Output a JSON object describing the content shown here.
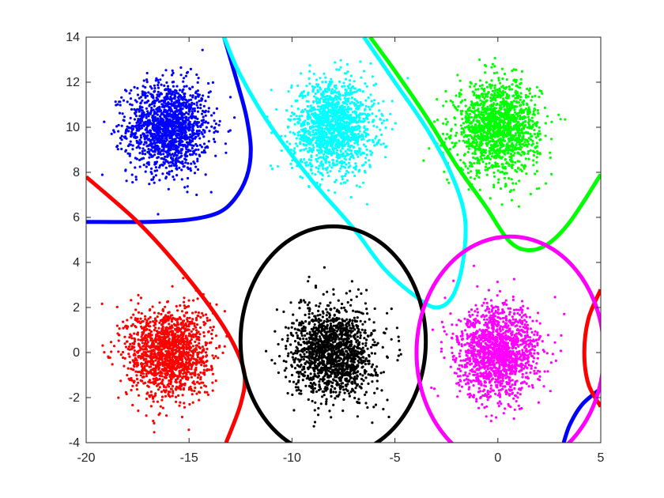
{
  "chart_data": {
    "type": "scatter",
    "title": "",
    "xlabel": "",
    "ylabel": "",
    "xlim": [
      -20,
      5
    ],
    "ylim": [
      -4,
      14
    ],
    "grid": false,
    "box": true,
    "x_ticks": [
      "-20",
      "-15",
      "-10",
      "-5",
      "0",
      "5"
    ],
    "y_ticks": [
      "-4",
      "-2",
      "0",
      "2",
      "4",
      "6",
      "8",
      "10",
      "12",
      "14"
    ],
    "clusters": [
      {
        "color": "#0000ff",
        "center": [
          -16,
          10
        ],
        "spread": [
          1.0,
          1.0
        ],
        "count": 1500
      },
      {
        "color": "#00ffff",
        "center": [
          -8,
          10
        ],
        "spread": [
          1.0,
          1.0
        ],
        "count": 1500
      },
      {
        "color": "#00ff00",
        "center": [
          0,
          10
        ],
        "spread": [
          1.0,
          1.0
        ],
        "count": 1500
      },
      {
        "color": "#ff0000",
        "center": [
          -16,
          0
        ],
        "spread": [
          1.0,
          1.0
        ],
        "count": 1500
      },
      {
        "color": "#000000",
        "center": [
          -8,
          0
        ],
        "spread": [
          1.0,
          1.0
        ],
        "count": 1500
      },
      {
        "color": "#ff00ff",
        "center": [
          0,
          0
        ],
        "spread": [
          1.0,
          1.0
        ],
        "count": 1500
      }
    ],
    "boundaries": [
      {
        "color": "#0000ff",
        "points": [
          [
            -20,
            5.8
          ],
          [
            -17,
            5.8
          ],
          [
            -15,
            5.9
          ],
          [
            -13.6,
            6.2
          ],
          [
            -12.8,
            6.8
          ],
          [
            -12.2,
            7.8
          ],
          [
            -12.0,
            9.0
          ],
          [
            -12.2,
            10.4
          ],
          [
            -12.6,
            11.8
          ],
          [
            -13.3,
            14.0
          ]
        ]
      },
      {
        "color": "#0000ff",
        "points": [
          [
            3.2,
            -4.0
          ],
          [
            3.5,
            -3.2
          ],
          [
            4.1,
            -2.3
          ],
          [
            5.0,
            -1.6
          ]
        ]
      },
      {
        "color": "#00ffff",
        "points": [
          [
            -13.3,
            14.0
          ],
          [
            -12.5,
            12.3
          ],
          [
            -11.0,
            10.0
          ],
          [
            -9.0,
            7.6
          ],
          [
            -7.0,
            5.5
          ],
          [
            -5.5,
            3.7
          ],
          [
            -4.0,
            2.5
          ],
          [
            -3.0,
            2.0
          ],
          [
            -2.2,
            2.5
          ],
          [
            -1.7,
            4.0
          ],
          [
            -1.6,
            6.0
          ],
          [
            -2.3,
            8.0
          ],
          [
            -3.5,
            10.0
          ],
          [
            -5.0,
            12.0
          ],
          [
            -6.5,
            14.0
          ]
        ]
      },
      {
        "color": "#00ff00",
        "points": [
          [
            -6.2,
            14.0
          ],
          [
            -5.0,
            12.5
          ],
          [
            -3.5,
            10.5
          ],
          [
            -2.0,
            8.3
          ],
          [
            -0.6,
            6.5
          ],
          [
            0.5,
            5.0
          ],
          [
            1.4,
            4.55
          ],
          [
            2.4,
            4.8
          ],
          [
            3.5,
            5.8
          ],
          [
            5.0,
            7.9
          ]
        ]
      },
      {
        "color": "#ff0000",
        "points": [
          [
            -20,
            7.8
          ],
          [
            -17.5,
            5.8
          ],
          [
            -15.5,
            3.8
          ],
          [
            -13.8,
            1.8
          ],
          [
            -12.8,
            0.3
          ],
          [
            -12.3,
            -1.0
          ],
          [
            -12.5,
            -2.3
          ],
          [
            -13.2,
            -4.0
          ]
        ]
      },
      {
        "color": "#ff0000",
        "points": [
          [
            5.0,
            2.8
          ],
          [
            4.4,
            1.5
          ],
          [
            4.2,
            0.0
          ],
          [
            4.4,
            -1.4
          ],
          [
            5.0,
            -2.4
          ]
        ]
      },
      {
        "color": "#000000",
        "ellipse": {
          "cx": -8.0,
          "cy": 0.5,
          "rx": 4.5,
          "ry": 5.1
        }
      },
      {
        "color": "#ff00ff",
        "ellipse": {
          "cx": 0.6,
          "cy": 0.0,
          "rx": 4.55,
          "ry": 5.15
        }
      }
    ]
  }
}
